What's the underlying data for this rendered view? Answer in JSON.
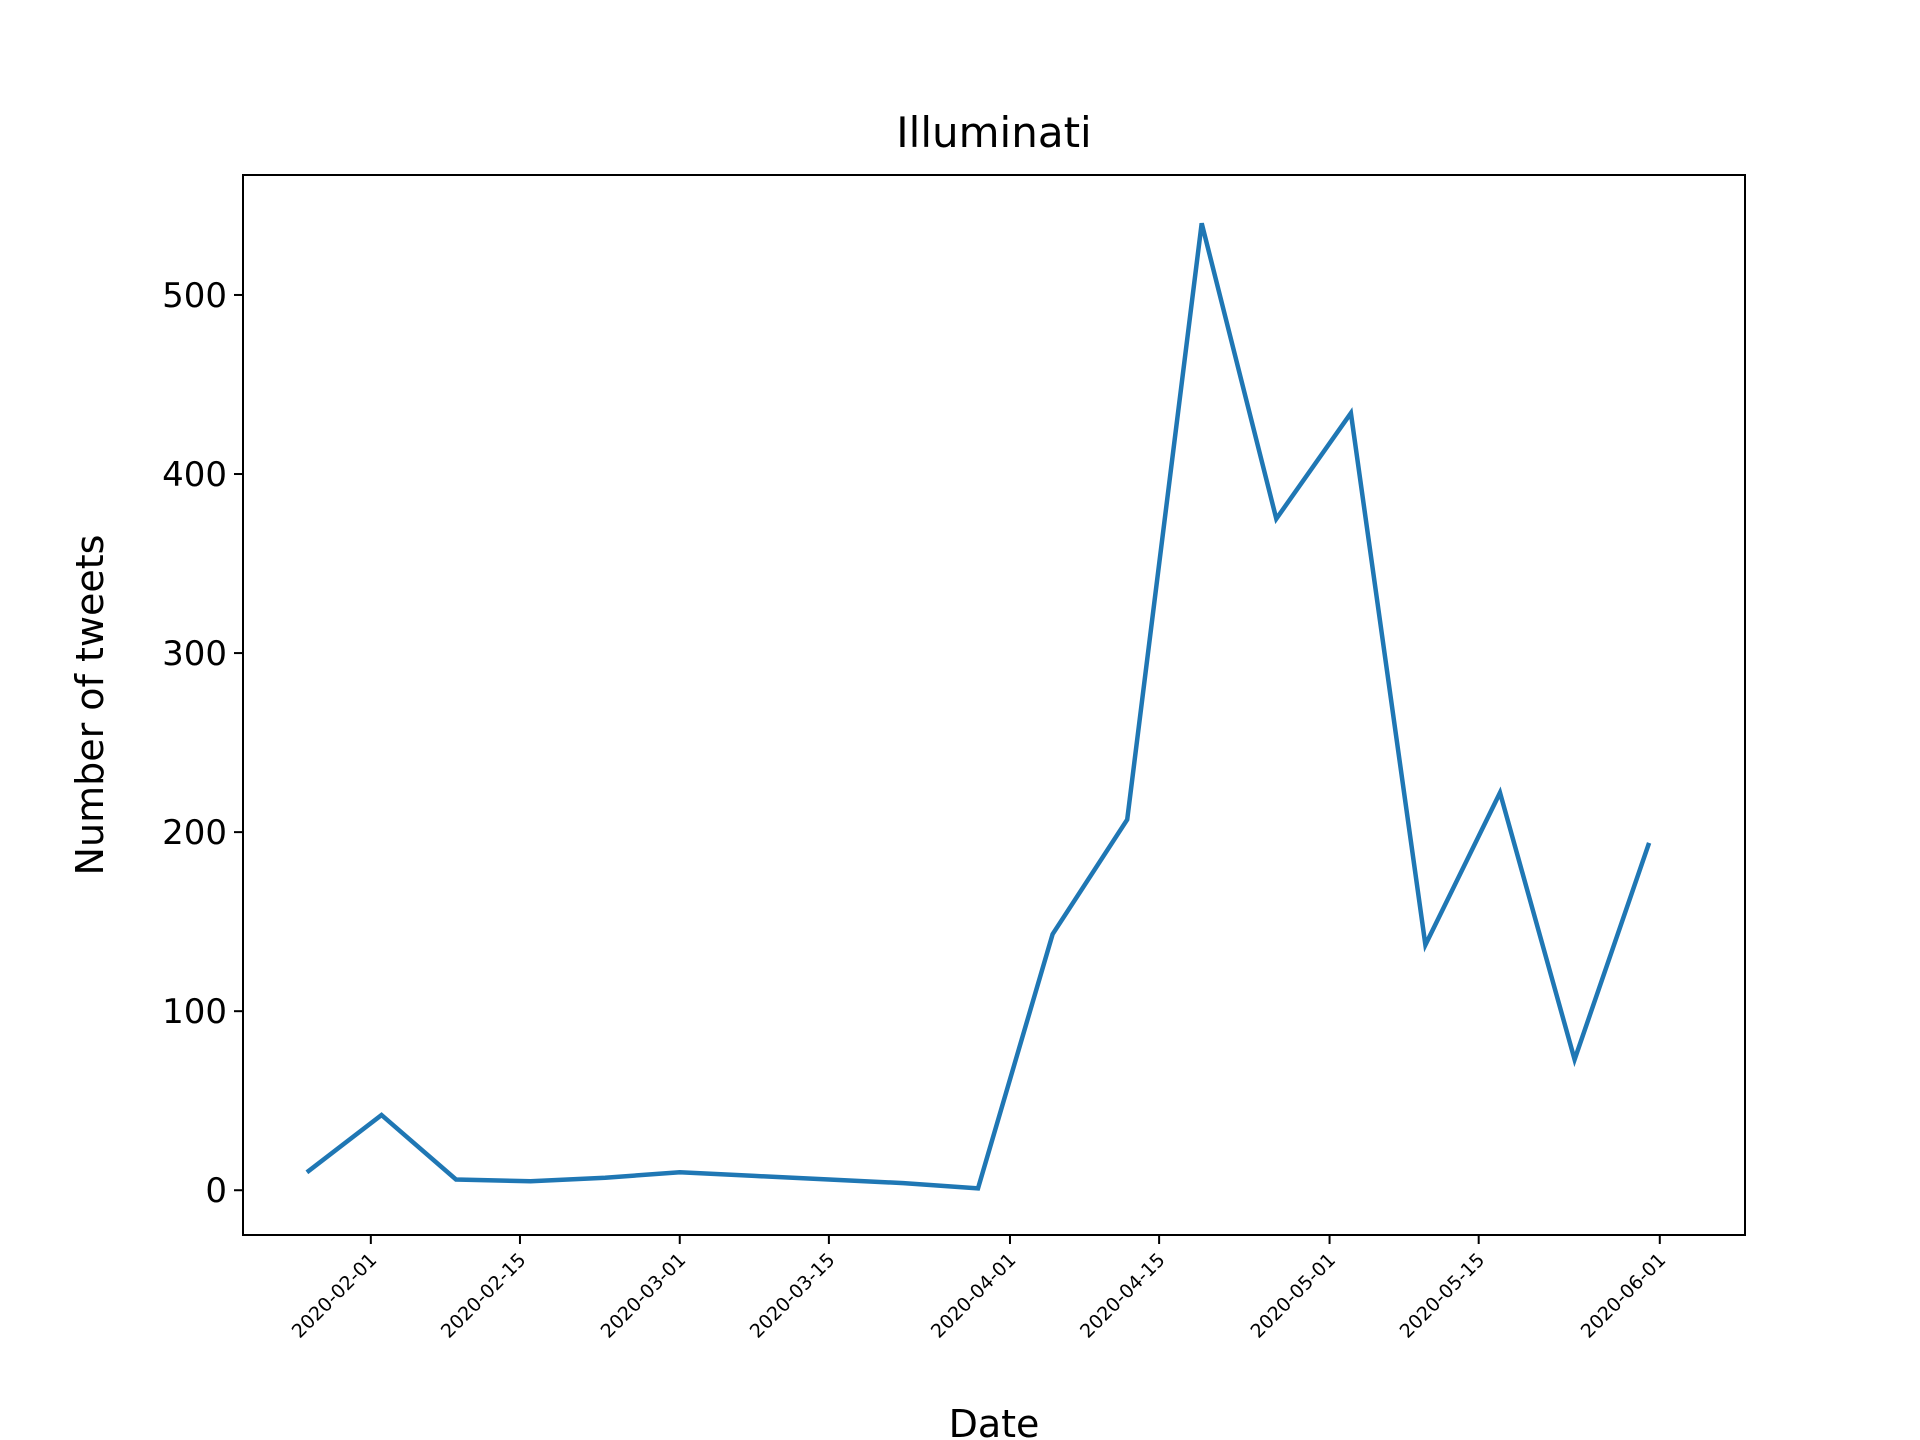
{
  "chart_data": {
    "type": "line",
    "title": "Illuminati",
    "xlabel": "Date",
    "ylabel": "Number of tweets",
    "series": [
      {
        "color": "#1f77b4",
        "x": [
          "2020-01-26",
          "2020-02-02",
          "2020-02-09",
          "2020-02-16",
          "2020-02-23",
          "2020-03-01",
          "2020-03-08",
          "2020-03-15",
          "2020-03-22",
          "2020-03-29",
          "2020-04-05",
          "2020-04-12",
          "2020-04-19",
          "2020-04-26",
          "2020-05-03",
          "2020-05-10",
          "2020-05-17",
          "2020-05-24",
          "2020-05-31"
        ],
        "values": [
          10,
          42,
          6,
          5,
          7,
          10,
          8,
          6,
          4,
          1,
          143,
          207,
          540,
          375,
          434,
          137,
          222,
          73,
          194
        ]
      }
    ],
    "x_ticks": [
      "2020-02-01",
      "2020-02-15",
      "2020-03-01",
      "2020-03-15",
      "2020-04-01",
      "2020-04-15",
      "2020-05-01",
      "2020-05-15",
      "2020-06-01"
    ],
    "y_ticks": [
      0,
      100,
      200,
      300,
      400,
      500
    ],
    "xlim": [
      "2020-01-20",
      "2020-06-09"
    ],
    "ylim": [
      -25,
      567
    ],
    "grid": false,
    "legend": "none"
  }
}
